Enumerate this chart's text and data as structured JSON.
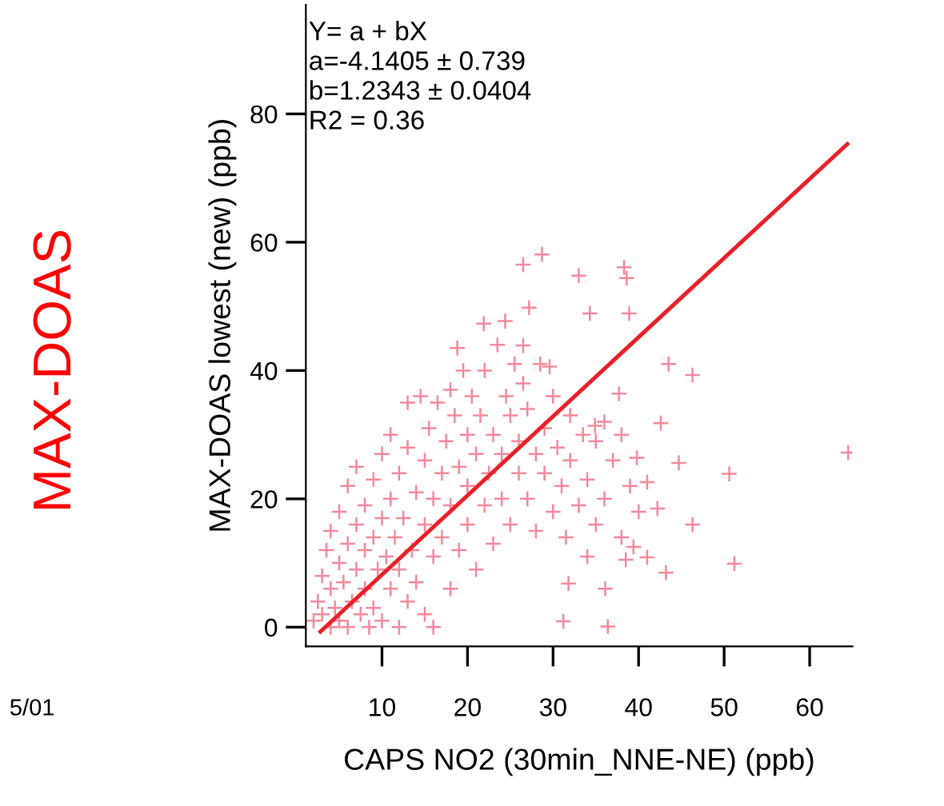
{
  "chart_data": {
    "type": "scatter",
    "xlabel": "CAPS NO2 (30min_NNE-NE) (ppb)",
    "ylabel": "MAX-DOAS lowest (new) (ppb)",
    "annotations": [
      "Y= a + bX\na=-4.1405 ± 0.739\nb=1.2343 ± 0.0404\nR2 = 0.36",
      "MAX-DOAS",
      "5/01"
    ],
    "xlim": [
      1.1,
      65
    ],
    "ylim": [
      -3,
      97
    ],
    "xticks": [
      10,
      20,
      30,
      40,
      50,
      60
    ],
    "yticks": [
      0,
      20,
      40,
      60,
      80
    ],
    "grid": false,
    "legend": false,
    "series": [
      {
        "color": "#f4899b",
        "marker": "cross",
        "x": [
          2,
          2.5,
          3,
          3,
          3.5,
          4,
          4,
          4,
          4.5,
          5,
          5,
          5,
          5.5,
          6,
          6,
          6,
          6.5,
          7,
          7,
          7,
          7.5,
          8,
          8,
          8,
          8.5,
          9,
          9,
          9,
          9.5,
          10,
          10,
          10,
          10.5,
          11,
          11,
          11,
          11.5,
          12,
          12,
          12,
          12.5,
          13,
          13,
          13,
          13.5,
          14,
          14,
          14.5,
          15,
          15,
          15,
          15.5,
          16,
          16,
          16,
          16.5,
          17,
          17,
          17.5,
          18,
          18,
          18,
          18.5,
          19,
          19,
          19.5,
          20,
          20,
          20,
          20.5,
          21,
          21,
          21.5,
          22,
          22,
          22.5,
          23,
          23,
          23.5,
          24,
          24,
          24.5,
          25,
          25,
          25.5,
          26,
          26,
          26.5,
          27,
          27,
          28,
          28,
          28.5,
          29,
          29,
          30,
          30,
          30.5,
          31,
          31.5,
          32,
          32,
          33,
          33.5,
          34,
          34,
          35,
          35,
          36,
          36,
          37,
          38,
          38,
          39,
          40,
          64.5,
          51.2,
          50.6,
          46.3,
          46.3,
          43.5,
          43.2,
          42.6,
          39.4,
          41,
          42.2,
          41,
          38.5,
          36.1,
          36.4,
          31.2,
          31.8,
          28.7,
          26.5,
          33,
          38.3,
          38.6,
          34.3,
          38.9,
          27.2,
          21.9,
          24.4,
          18.8,
          26.5,
          29.6,
          37.7,
          34.9,
          39.8,
          44.7
        ],
        "values": [
          1,
          4,
          8,
          2,
          12,
          0,
          6,
          15,
          3,
          10,
          18,
          1,
          7,
          13,
          22,
          0,
          4,
          9,
          16,
          25,
          2,
          12,
          19,
          6,
          0,
          14,
          23,
          3,
          9,
          17,
          27,
          1,
          11,
          6,
          20,
          30,
          14,
          0,
          24,
          9,
          17,
          4,
          28,
          35,
          12,
          21,
          7,
          36,
          16,
          26,
          2,
          31,
          11,
          20,
          0,
          35,
          24,
          14,
          29,
          6,
          19,
          37,
          33,
          25,
          12,
          40,
          22,
          30,
          16,
          36,
          9,
          27,
          33,
          19,
          40,
          24,
          13,
          30,
          44,
          27,
          20,
          36,
          33,
          16,
          41,
          24,
          29,
          38,
          20,
          34,
          27,
          15,
          41,
          24,
          31,
          18,
          36,
          28,
          22,
          14,
          26,
          33,
          19,
          30,
          11,
          23,
          29,
          16,
          32,
          20,
          26,
          14,
          30,
          22,
          18,
          27.2,
          9.9,
          23.9,
          16,
          39.3,
          41,
          8.5,
          31.8,
          12.5,
          10.9,
          18.5,
          22.6,
          10.5,
          6,
          0.1,
          0.9,
          6.8,
          58.1,
          56.5,
          54.8,
          56.1,
          54.4,
          48.9,
          48.9,
          49.8,
          47.3,
          47.7,
          43.5,
          43.9,
          40.6,
          36.4,
          31.4,
          26.4,
          25.6
        ]
      },
      {
        "type": "line",
        "color": "#e8202a",
        "marker": "none",
        "line_style": "solid",
        "x": [
          2.8,
          64.4
        ],
        "values": [
          -0.7,
          75.3
        ]
      }
    ]
  }
}
